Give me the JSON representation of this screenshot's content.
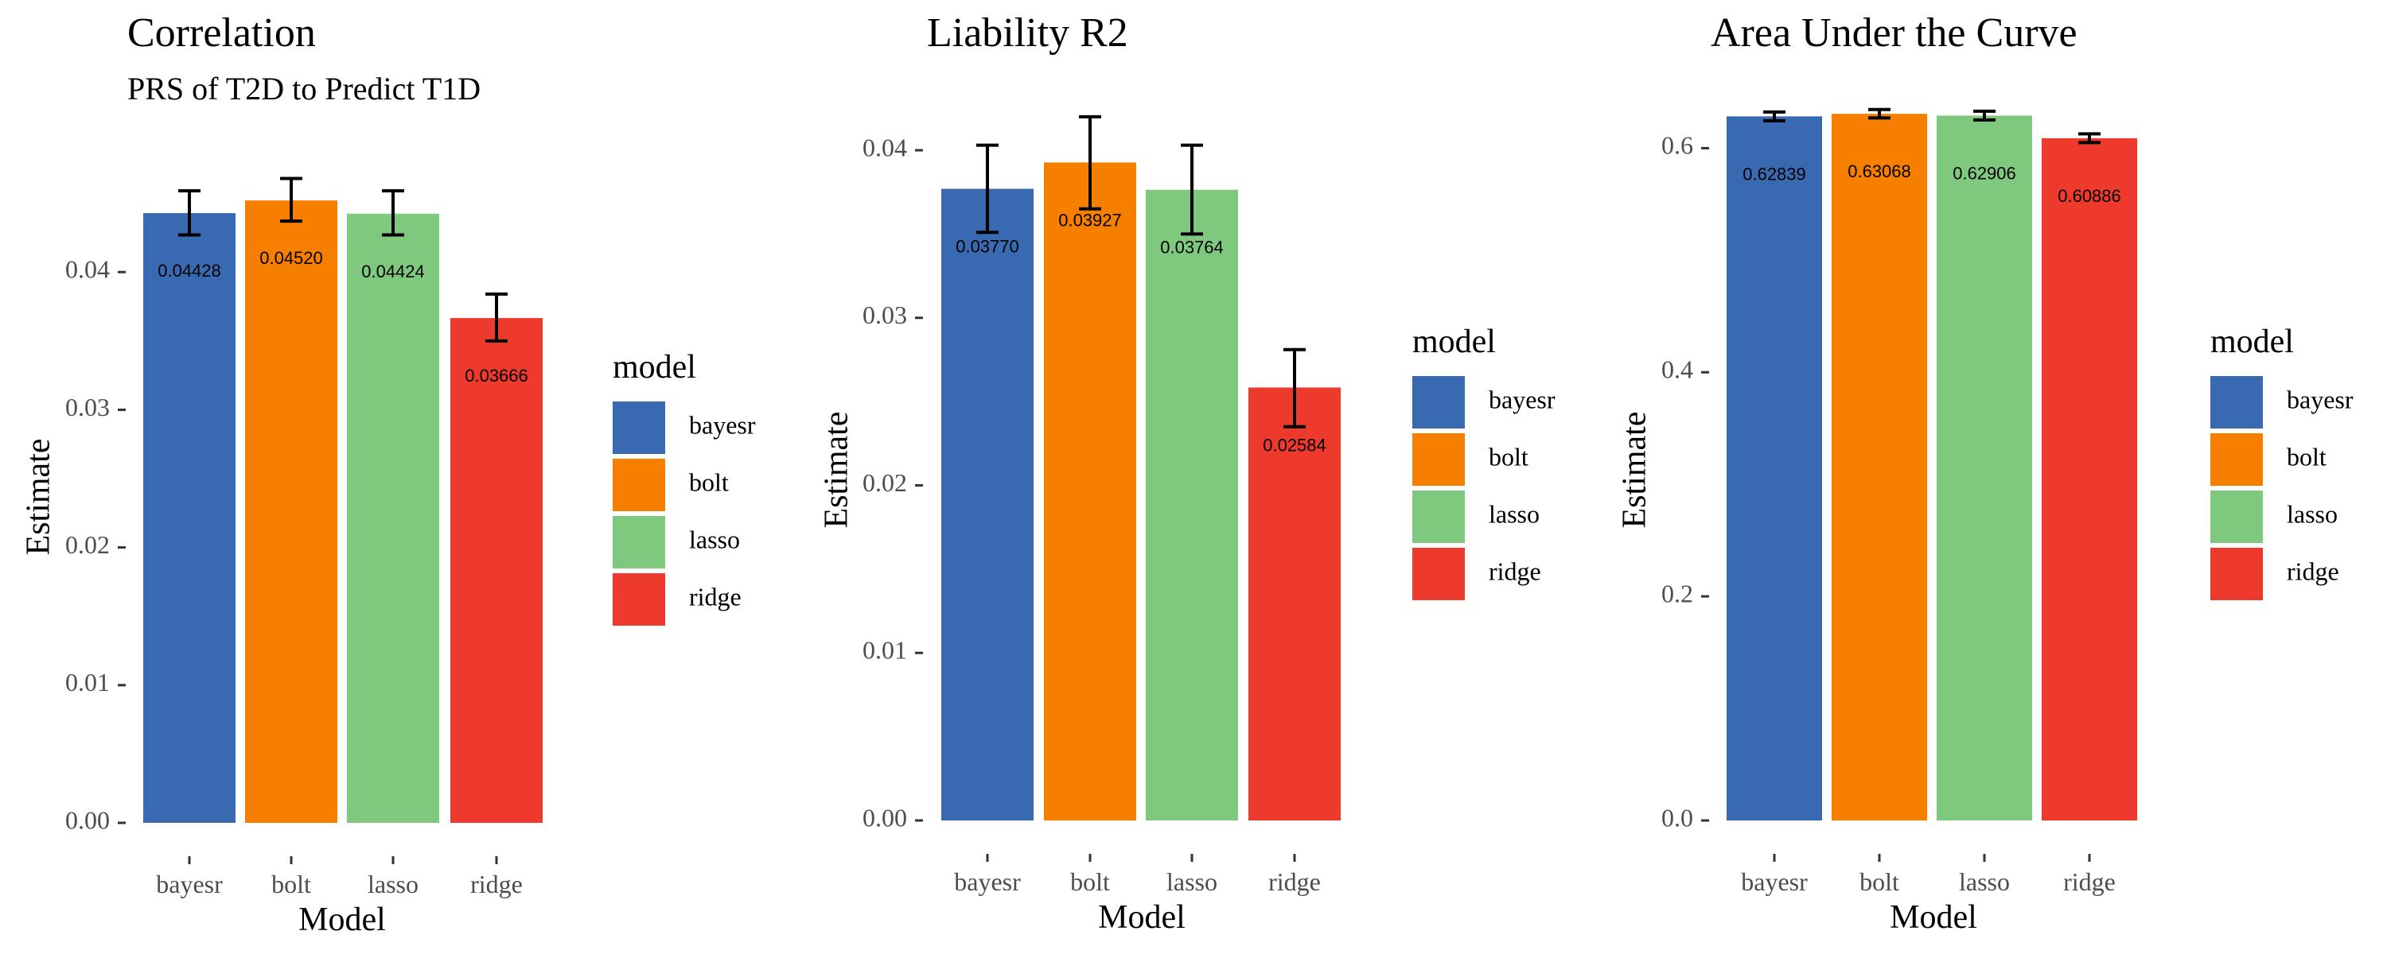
{
  "chart_data": [
    {
      "type": "bar",
      "title": "Correlation",
      "subtitle": "PRS of T2D to Predict T1D",
      "xlabel": "Model",
      "ylabel": "Estimate",
      "categories": [
        "bayesr",
        "bolt",
        "lasso",
        "ridge"
      ],
      "values": [
        0.04428,
        0.0452,
        0.04424,
        0.03666
      ],
      "error_low": [
        0.0427,
        0.0437,
        0.0427,
        0.035
      ],
      "error_high": [
        0.0459,
        0.0468,
        0.0459,
        0.0384
      ],
      "value_labels": [
        "0.04428",
        "0.04520",
        "0.04424",
        "0.03666"
      ],
      "ylim": [
        0,
        0.0485
      ],
      "yticks": [
        0,
        0.01,
        0.02,
        0.03,
        0.04
      ],
      "ytick_labels": [
        "0.00",
        "0.01",
        "0.02",
        "0.03",
        "0.04"
      ],
      "legend_title": "model",
      "legend_position": "right",
      "grid": false
    },
    {
      "type": "bar",
      "title": "Liability R2",
      "xlabel": "Model",
      "ylabel": "Estimate",
      "categories": [
        "bayesr",
        "bolt",
        "lasso",
        "ridge"
      ],
      "values": [
        0.0377,
        0.03927,
        0.03764,
        0.02584
      ],
      "error_low": [
        0.0351,
        0.0365,
        0.035,
        0.0235
      ],
      "error_high": [
        0.0403,
        0.042,
        0.0403,
        0.0281
      ],
      "value_labels": [
        "0.03770",
        "0.03927",
        "0.03764",
        "0.02584"
      ],
      "ylim": [
        0,
        0.0428
      ],
      "yticks": [
        0,
        0.01,
        0.02,
        0.03,
        0.04
      ],
      "ytick_labels": [
        "0.00",
        "0.01",
        "0.02",
        "0.03",
        "0.04"
      ],
      "legend_title": "model",
      "legend_position": "right",
      "grid": false
    },
    {
      "type": "bar",
      "title": "Area Under the Curve",
      "xlabel": "Model",
      "ylabel": "Estimate",
      "categories": [
        "bayesr",
        "bolt",
        "lasso",
        "ridge"
      ],
      "values": [
        0.62839,
        0.63068,
        0.62906,
        0.60886
      ],
      "error_low": [
        0.6245,
        0.627,
        0.6252,
        0.605
      ],
      "error_high": [
        0.6323,
        0.6345,
        0.633,
        0.6128
      ],
      "value_labels": [
        "0.62839",
        "0.63068",
        "0.62906",
        "0.60886"
      ],
      "ylim": [
        0,
        0.64
      ],
      "yticks": [
        0,
        0.2,
        0.4,
        0.6
      ],
      "ytick_labels": [
        "0.0",
        "0.2",
        "0.4",
        "0.6"
      ],
      "legend_title": "model",
      "legend_position": "right",
      "grid": false
    }
  ],
  "colors": {
    "bayesr": "#396AB1",
    "bolt": "#F77F00",
    "lasso": "#7FC97F",
    "ridge": "#EE3A2C"
  },
  "legend_items": [
    "bayesr",
    "bolt",
    "lasso",
    "ridge"
  ]
}
